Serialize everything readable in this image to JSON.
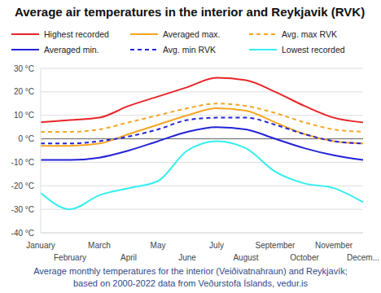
{
  "chart_data": {
    "type": "line",
    "title": "Average air temperatures in the interior and Reykjavik (RVK)",
    "caption": [
      "Average monthly temperatures for the interior (Veiðivatnahraun) and Reykjavík;",
      "based on 2000-2022 data from Veðurstofa Íslands, vedur.is"
    ],
    "categories": [
      "January",
      "February",
      "March",
      "April",
      "May",
      "June",
      "July",
      "August",
      "September",
      "October",
      "November",
      "Decem..."
    ],
    "series": [
      {
        "name": "Highest recorded",
        "color": "#e8262a",
        "line_style": "solid",
        "values": [
          7,
          8,
          9,
          14,
          18,
          22,
          26,
          25,
          20,
          14,
          9,
          7
        ]
      },
      {
        "name": "Averaged max.",
        "color": "#f5a623",
        "line_style": "solid",
        "values": [
          -3,
          -3,
          -2,
          2,
          6,
          10,
          13,
          12,
          7,
          2,
          -1,
          -2
        ]
      },
      {
        "name": "Avg. max RVK",
        "color": "#f5a623",
        "line_style": "dashed",
        "values": [
          3,
          3,
          4,
          7,
          10,
          13,
          15,
          14,
          11,
          7,
          4,
          3
        ]
      },
      {
        "name": "Averaged min.",
        "color": "#2323d8",
        "line_style": "solid",
        "values": [
          -9,
          -9,
          -8,
          -5,
          -1,
          3,
          5,
          4,
          0,
          -4,
          -7,
          -9
        ]
      },
      {
        "name": "Avg. min RVK",
        "color": "#2323d8",
        "line_style": "dashed",
        "values": [
          -2,
          -2,
          -1,
          1,
          4,
          8,
          9,
          9,
          6,
          2,
          -1,
          -2
        ]
      },
      {
        "name": "Lowest recorded",
        "color": "#33eef0",
        "line_style": "solid",
        "values": [
          -23,
          -30,
          -24,
          -21,
          -18,
          -5,
          -1,
          -4,
          -14,
          -19,
          -21,
          -27
        ]
      }
    ],
    "ylim": [
      -40,
      30
    ],
    "yticks": [
      {
        "value": -40,
        "label": "-40 °C"
      },
      {
        "value": -30,
        "label": "-30 °C"
      },
      {
        "value": -20,
        "label": "-20 °C"
      },
      {
        "value": -10,
        "label": "-10 °C"
      },
      {
        "value": 0,
        "label": "0 °C"
      },
      {
        "value": 10,
        "label": "10 °C"
      },
      {
        "value": 20,
        "label": "20 °C"
      },
      {
        "value": 30,
        "label": "30 °C"
      }
    ],
    "grid": true,
    "legend": "top"
  }
}
